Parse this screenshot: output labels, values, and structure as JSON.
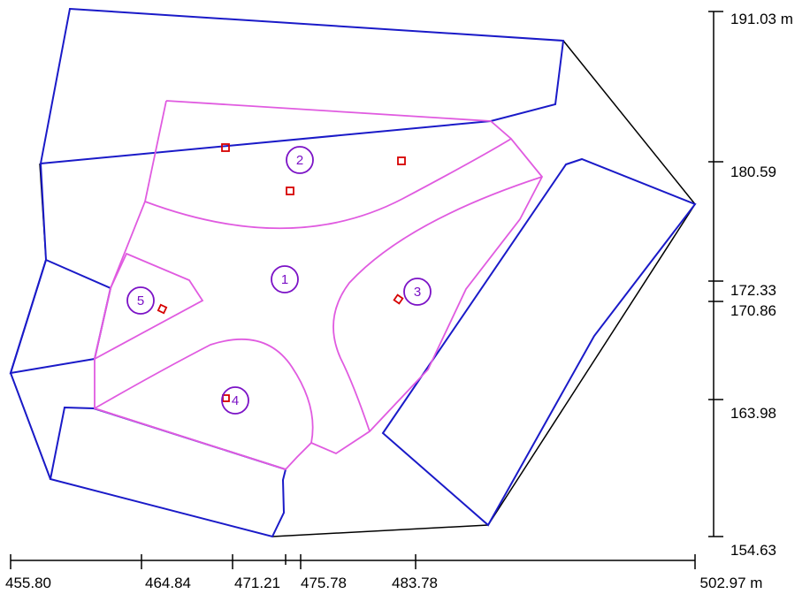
{
  "axes": {
    "vertical": [
      {
        "value": "191.03 m"
      },
      {
        "value": "180.59"
      },
      {
        "value": "172.33"
      },
      {
        "value": "170.86"
      },
      {
        "value": "163.98"
      },
      {
        "value": "154.63"
      }
    ],
    "horizontal": [
      {
        "value": "455.80"
      },
      {
        "value": "464.84"
      },
      {
        "value": "471.21"
      },
      {
        "value": "475.78"
      },
      {
        "value": "483.78"
      },
      {
        "value": "502.97 m"
      }
    ]
  },
  "zones": [
    {
      "label": "1"
    },
    {
      "label": "2"
    },
    {
      "label": "3"
    },
    {
      "label": "4"
    },
    {
      "label": "5"
    }
  ],
  "colors": {
    "boundary": "#000000",
    "building": "#1a1ac8",
    "zone": "#e05be0",
    "marker": "#d60000",
    "zone_label": "#7b12c6"
  }
}
